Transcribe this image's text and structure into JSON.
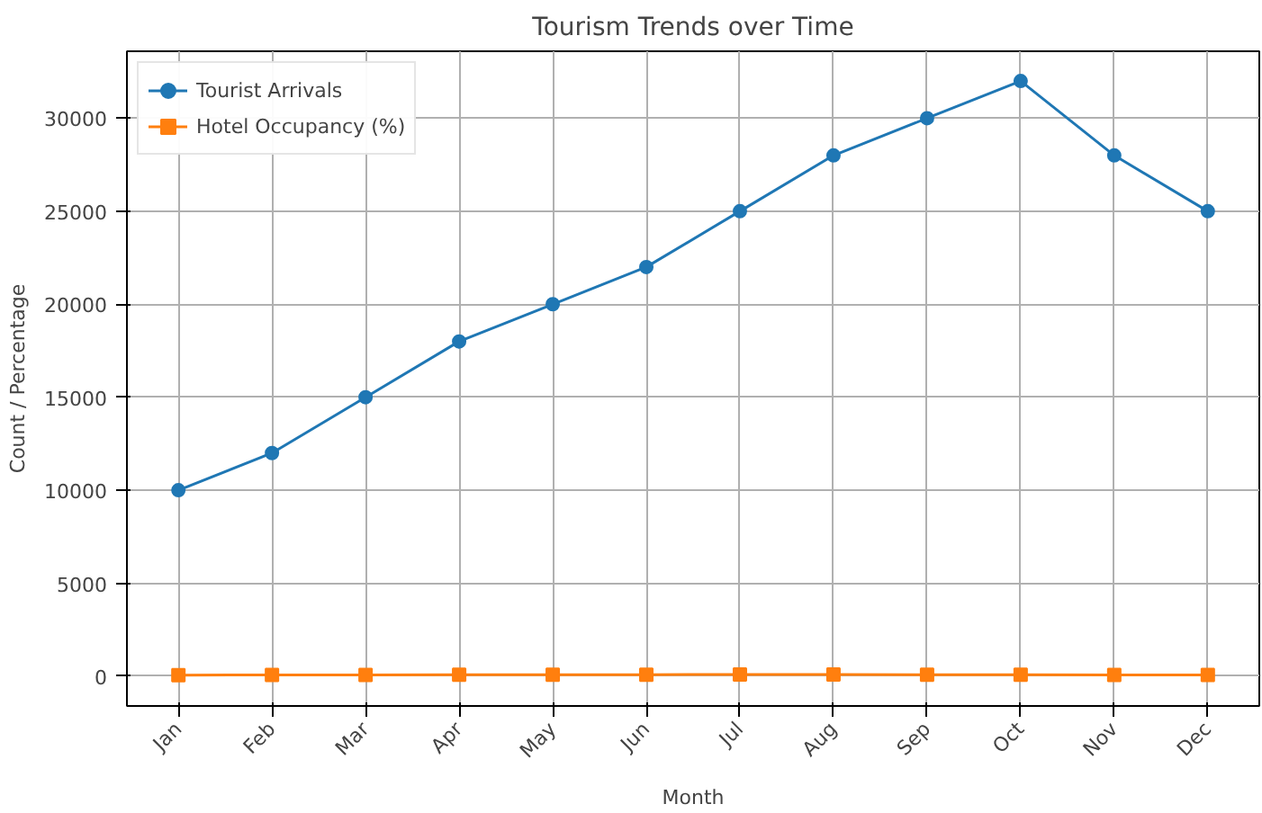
{
  "chart_data": {
    "type": "line",
    "title": "Tourism Trends over Time",
    "xlabel": "Month",
    "ylabel": "Count / Percentage",
    "categories": [
      "Jan",
      "Feb",
      "Mar",
      "Apr",
      "May",
      "Jun",
      "Jul",
      "Aug",
      "Sep",
      "Oct",
      "Nov",
      "Dec"
    ],
    "series": [
      {
        "name": "Tourist Arrivals",
        "color": "#1f77b4",
        "marker": "circle",
        "values": [
          10000,
          12000,
          15000,
          18000,
          20000,
          22000,
          25000,
          28000,
          30000,
          32000,
          28000,
          25000
        ]
      },
      {
        "name": "Hotel Occupancy (%)",
        "color": "#ff7f0e",
        "marker": "square",
        "values": [
          60,
          65,
          70,
          75,
          80,
          85,
          90,
          88,
          82,
          78,
          70,
          65
        ]
      }
    ],
    "ylim": [
      -1600,
      33600
    ],
    "yticks": [
      0,
      5000,
      10000,
      15000,
      20000,
      25000,
      30000
    ],
    "grid": true,
    "legend": "top left",
    "line_style": "solid"
  }
}
